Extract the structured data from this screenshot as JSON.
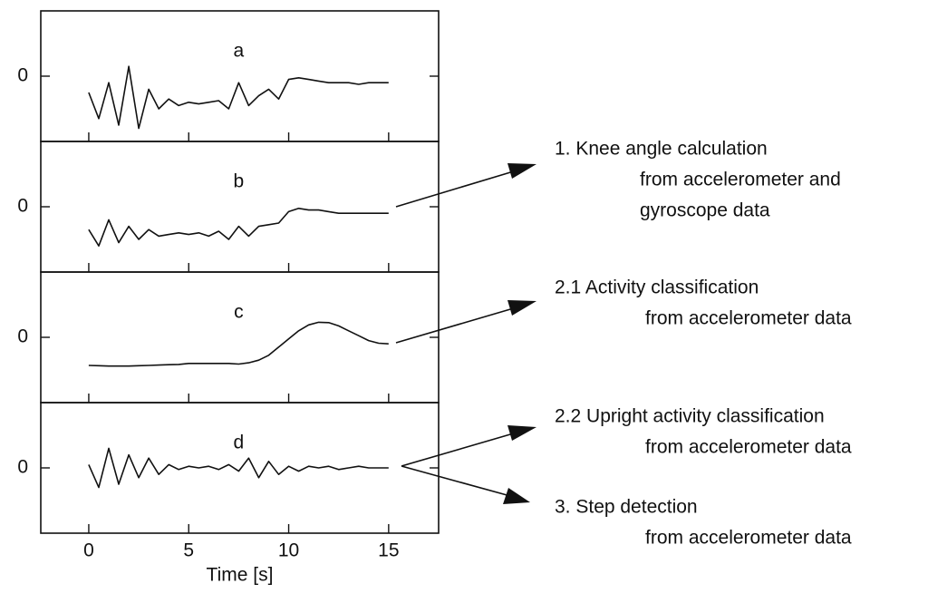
{
  "chart_data": [
    {
      "type": "line",
      "title": "a",
      "x": [
        0,
        0.5,
        1,
        1.5,
        2,
        2.5,
        3,
        3.5,
        4,
        4.5,
        5,
        5.5,
        6,
        6.5,
        7,
        7.5,
        8,
        8.5,
        9,
        9.5,
        10,
        10.5,
        11,
        11.5,
        12,
        12.5,
        13,
        13.5,
        14,
        14.5,
        15
      ],
      "values": [
        -0.5,
        -1.3,
        -0.2,
        -1.5,
        0.3,
        -1.6,
        -0.4,
        -1.0,
        -0.7,
        -0.9,
        -0.8,
        -0.85,
        -0.8,
        -0.75,
        -1.0,
        -0.2,
        -0.9,
        -0.6,
        -0.4,
        -0.7,
        -0.1,
        -0.05,
        -0.1,
        -0.15,
        -0.2,
        -0.2,
        -0.2,
        -0.25,
        -0.2,
        -0.2,
        -0.2
      ],
      "xlim": [
        -2.4,
        17.5
      ],
      "ylim": [
        -2,
        2
      ],
      "yticks": [
        0
      ]
    },
    {
      "type": "line",
      "title": "b",
      "x": [
        0,
        0.5,
        1,
        1.5,
        2,
        2.5,
        3,
        3.5,
        4,
        4.5,
        5,
        5.5,
        6,
        6.5,
        7,
        7.5,
        8,
        8.5,
        9,
        9.5,
        10,
        10.5,
        11,
        11.5,
        12,
        12.5,
        13,
        13.5,
        14,
        14.5,
        15
      ],
      "values": [
        -0.7,
        -1.2,
        -0.4,
        -1.1,
        -0.6,
        -1.0,
        -0.7,
        -0.9,
        -0.85,
        -0.8,
        -0.85,
        -0.8,
        -0.9,
        -0.75,
        -1.0,
        -0.6,
        -0.9,
        -0.6,
        -0.55,
        -0.5,
        -0.15,
        -0.05,
        -0.1,
        -0.1,
        -0.15,
        -0.2,
        -0.2,
        -0.2,
        -0.2,
        -0.2,
        -0.2
      ],
      "xlim": [
        -2.4,
        17.5
      ],
      "ylim": [
        -2,
        2
      ],
      "yticks": [
        0
      ]
    },
    {
      "type": "line",
      "title": "c",
      "x": [
        0,
        0.5,
        1,
        1.5,
        2,
        2.5,
        3,
        3.5,
        4,
        4.5,
        5,
        5.5,
        6,
        6.5,
        7,
        7.5,
        8,
        8.5,
        9,
        9.5,
        10,
        10.5,
        11,
        11.5,
        12,
        12.5,
        13,
        13.5,
        14,
        14.5,
        15
      ],
      "values": [
        -0.86,
        -0.87,
        -0.88,
        -0.88,
        -0.88,
        -0.87,
        -0.86,
        -0.85,
        -0.84,
        -0.83,
        -0.8,
        -0.8,
        -0.8,
        -0.8,
        -0.8,
        -0.82,
        -0.78,
        -0.7,
        -0.55,
        -0.3,
        -0.05,
        0.2,
        0.38,
        0.46,
        0.45,
        0.35,
        0.2,
        0.05,
        -0.1,
        -0.18,
        -0.2
      ],
      "xlim": [
        -2.4,
        17.5
      ],
      "ylim": [
        -2,
        2
      ],
      "yticks": [
        0
      ]
    },
    {
      "type": "line",
      "title": "d",
      "x": [
        0,
        0.5,
        1,
        1.5,
        2,
        2.5,
        3,
        3.5,
        4,
        4.5,
        5,
        5.5,
        6,
        6.5,
        7,
        7.5,
        8,
        8.5,
        9,
        9.5,
        10,
        10.5,
        11,
        11.5,
        12,
        12.5,
        13,
        13.5,
        14,
        14.5,
        15
      ],
      "values": [
        0.1,
        -0.6,
        0.6,
        -0.5,
        0.4,
        -0.3,
        0.3,
        -0.2,
        0.1,
        -0.05,
        0.05,
        0,
        0.05,
        -0.05,
        0.1,
        -0.1,
        0.3,
        -0.3,
        0.2,
        -0.2,
        0.05,
        -0.1,
        0.05,
        0,
        0.05,
        -0.05,
        0,
        0.05,
        0,
        0,
        0
      ],
      "xlim": [
        -2.4,
        17.5
      ],
      "ylim": [
        -2,
        2
      ],
      "yticks": [
        0
      ],
      "xticks": [
        0,
        5,
        10,
        15
      ],
      "x_label": "Time [s]"
    }
  ],
  "annotations": [
    {
      "lines": [
        "1. Knee angle calculation",
        "from accelerometer and",
        "gyroscope data"
      ]
    },
    {
      "lines": [
        "2.1 Activity classification",
        "from accelerometer data"
      ]
    },
    {
      "lines": [
        "2.2 Upright activity classification",
        "from accelerometer data"
      ]
    },
    {
      "lines": [
        "3. Step detection",
        "from accelerometer data"
      ]
    }
  ]
}
